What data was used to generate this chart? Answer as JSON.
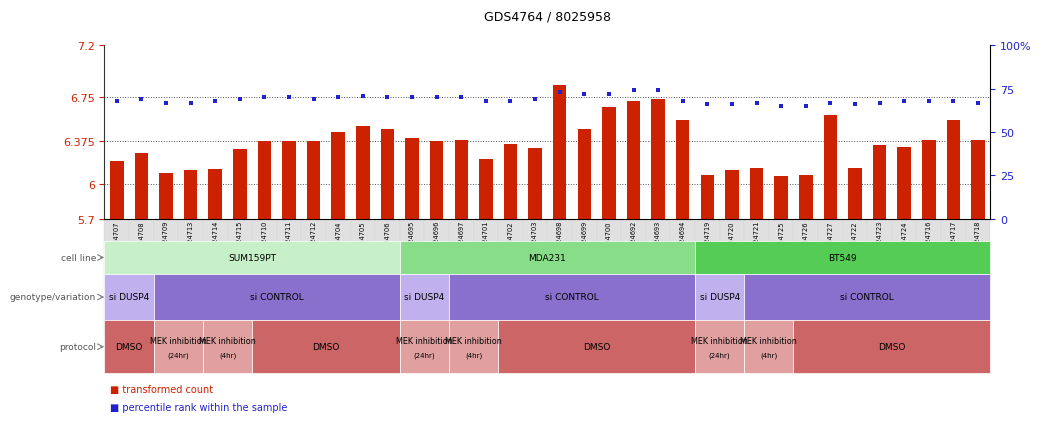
{
  "title": "GDS4764 / 8025958",
  "samples": [
    "GSM1024707",
    "GSM1024708",
    "GSM1024709",
    "GSM1024713",
    "GSM1024714",
    "GSM1024715",
    "GSM1024710",
    "GSM1024711",
    "GSM1024712",
    "GSM1024704",
    "GSM1024705",
    "GSM1024706",
    "GSM1024695",
    "GSM1024696",
    "GSM1024697",
    "GSM1024701",
    "GSM1024702",
    "GSM1024703",
    "GSM1024698",
    "GSM1024699",
    "GSM1024700",
    "GSM1024692",
    "GSM1024693",
    "GSM1024694",
    "GSM1024719",
    "GSM1024720",
    "GSM1024721",
    "GSM1024725",
    "GSM1024726",
    "GSM1024727",
    "GSM1024722",
    "GSM1024723",
    "GSM1024724",
    "GSM1024716",
    "GSM1024717",
    "GSM1024718"
  ],
  "red_values": [
    6.2,
    6.27,
    6.1,
    6.12,
    6.13,
    6.3,
    6.37,
    6.37,
    6.37,
    6.45,
    6.5,
    6.48,
    6.4,
    6.37,
    6.38,
    6.22,
    6.35,
    6.31,
    6.86,
    6.48,
    6.67,
    6.72,
    6.74,
    6.55,
    6.08,
    6.12,
    6.14,
    6.07,
    6.08,
    6.6,
    6.14,
    6.34,
    6.32,
    6.38,
    6.55,
    6.38
  ],
  "blue_values": [
    68,
    69,
    67,
    67,
    68,
    69,
    70,
    70,
    69,
    70,
    71,
    70,
    70,
    70,
    70,
    68,
    68,
    69,
    73,
    72,
    72,
    74,
    74,
    68,
    66,
    66,
    67,
    65,
    65,
    67,
    66,
    67,
    68,
    68,
    68,
    67
  ],
  "y_min": 5.7,
  "y_max": 7.2,
  "y_ticks": [
    5.7,
    6.0,
    6.375,
    6.75,
    7.2
  ],
  "y_ticks_labels": [
    "5.7",
    "6",
    "6.375",
    "6.75",
    "7.2"
  ],
  "right_y_ticks": [
    0,
    25,
    50,
    75,
    100
  ],
  "right_y_ticks_labels": [
    "0",
    "25",
    "50",
    "75",
    "100%"
  ],
  "bar_color": "#cc2200",
  "dot_color": "#2222cc",
  "bg_color": "#ffffff",
  "grid_color": "#555555",
  "tick_color_left": "#cc2200",
  "tick_color_right": "#2222cc",
  "row_label_color": "#555555",
  "cell_line_groups": [
    {
      "label": "SUM159PT",
      "start": 0,
      "end": 11,
      "color": "#c8f0c8"
    },
    {
      "label": "MDA231",
      "start": 12,
      "end": 23,
      "color": "#88dd88"
    },
    {
      "label": "BT549",
      "start": 24,
      "end": 35,
      "color": "#55cc55"
    }
  ],
  "genotype_groups": [
    {
      "label": "si DUSP4",
      "start": 0,
      "end": 1,
      "color": "#c0b0ee"
    },
    {
      "label": "si CONTROL",
      "start": 2,
      "end": 11,
      "color": "#8870cc"
    },
    {
      "label": "si DUSP4",
      "start": 12,
      "end": 13,
      "color": "#c0b0ee"
    },
    {
      "label": "si CONTROL",
      "start": 14,
      "end": 23,
      "color": "#8870cc"
    },
    {
      "label": "si DUSP4",
      "start": 24,
      "end": 25,
      "color": "#c0b0ee"
    },
    {
      "label": "si CONTROL",
      "start": 26,
      "end": 35,
      "color": "#8870cc"
    }
  ],
  "protocol_groups": [
    {
      "label": "DMSO",
      "start": 0,
      "end": 1,
      "color": "#cc6666"
    },
    {
      "label": "MEK inhibition\n(24hr)",
      "start": 2,
      "end": 3,
      "color": "#e0a0a0"
    },
    {
      "label": "MEK inhibition\n(4hr)",
      "start": 4,
      "end": 5,
      "color": "#e0a0a0"
    },
    {
      "label": "DMSO",
      "start": 6,
      "end": 11,
      "color": "#cc6666"
    },
    {
      "label": "MEK inhibition\n(24hr)",
      "start": 12,
      "end": 13,
      "color": "#e0a0a0"
    },
    {
      "label": "MEK inhibition\n(4hr)",
      "start": 14,
      "end": 15,
      "color": "#e0a0a0"
    },
    {
      "label": "DMSO",
      "start": 16,
      "end": 23,
      "color": "#cc6666"
    },
    {
      "label": "MEK inhibition\n(24hr)",
      "start": 24,
      "end": 25,
      "color": "#e0a0a0"
    },
    {
      "label": "MEK inhibition\n(4hr)",
      "start": 26,
      "end": 27,
      "color": "#e0a0a0"
    },
    {
      "label": "DMSO",
      "start": 28,
      "end": 35,
      "color": "#cc6666"
    }
  ]
}
